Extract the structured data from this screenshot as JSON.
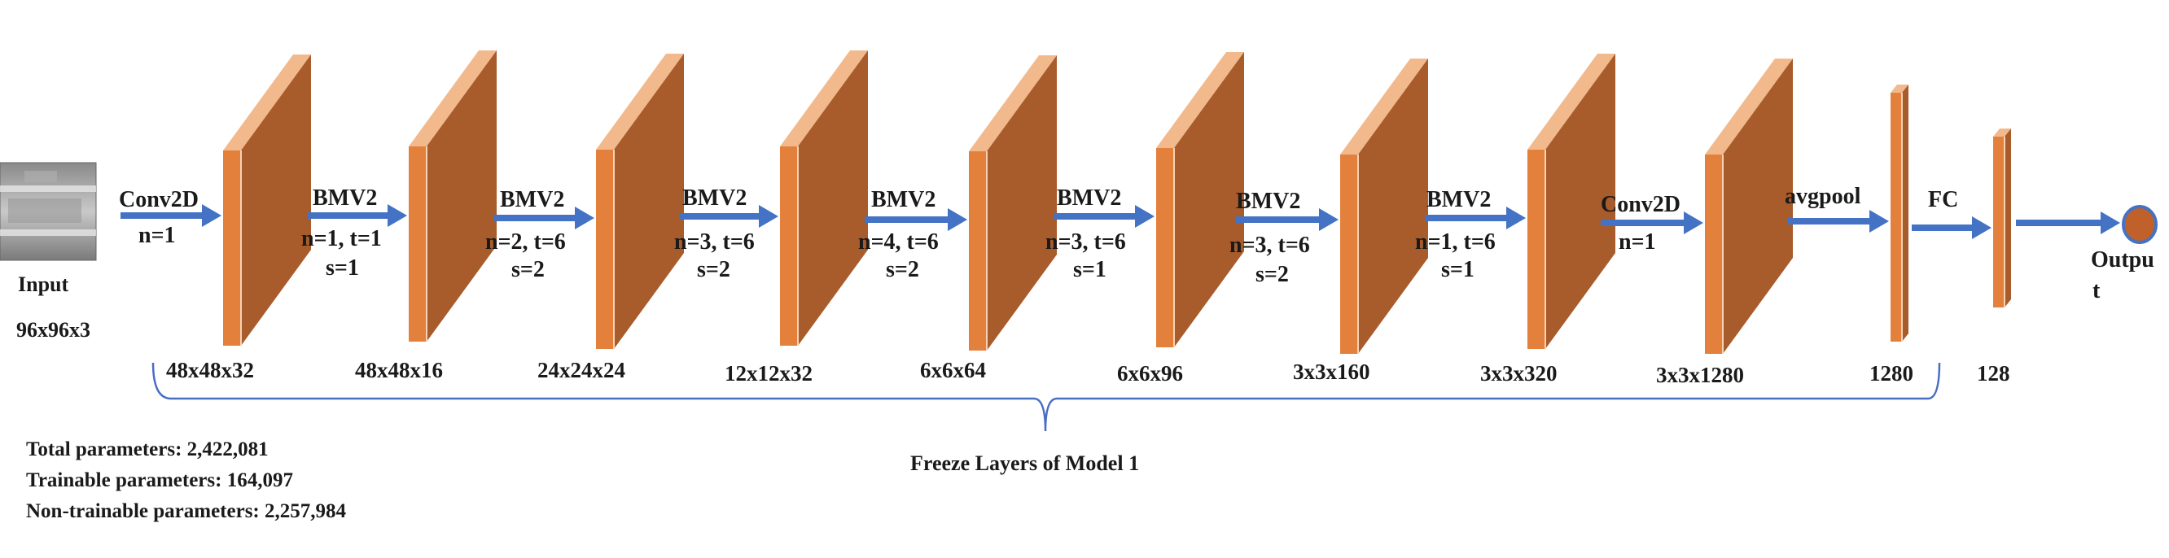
{
  "colors": {
    "arrow": "#4472C4",
    "layer_front": "#E2803C",
    "layer_side": "#A85B2B",
    "layer_edge": "#F2B98C",
    "output_node": "#C0602A",
    "brace": "#4A6DC4"
  },
  "input": {
    "title": "Input",
    "dims": "96x96x3"
  },
  "operations": [
    {
      "name": "Conv2D",
      "line1": "n=1",
      "line2": ""
    },
    {
      "name": "BMV2",
      "line1": "n=1, t=1",
      "line2": "s=1"
    },
    {
      "name": "BMV2",
      "line1": "n=2, t=6",
      "line2": "s=2"
    },
    {
      "name": "BMV2",
      "line1": "n=3, t=6",
      "line2": "s=2"
    },
    {
      "name": "BMV2",
      "line1": "n=4, t=6",
      "line2": "s=2"
    },
    {
      "name": "BMV2",
      "line1": "n=3, t=6",
      "line2": "s=1"
    },
    {
      "name": "BMV2",
      "line1": "n=3, t=6",
      "line2": "s=2"
    },
    {
      "name": "BMV2",
      "line1": "n=1, t=6",
      "line2": "s=1"
    },
    {
      "name": "Conv2D",
      "line1": "n=1",
      "line2": ""
    },
    {
      "name": "avgpool",
      "line1": "",
      "line2": ""
    },
    {
      "name": "FC",
      "line1": "",
      "line2": ""
    }
  ],
  "layers": [
    {
      "dims": "48x48x32"
    },
    {
      "dims": "48x48x16"
    },
    {
      "dims": "24x24x24"
    },
    {
      "dims": "12x12x32"
    },
    {
      "dims": "6x6x64"
    },
    {
      "dims": "6x6x96"
    },
    {
      "dims": "3x3x160"
    },
    {
      "dims": "3x3x320"
    },
    {
      "dims": "3x3x1280"
    },
    {
      "dims": "1280"
    },
    {
      "dims": "128"
    }
  ],
  "output": {
    "line1": "Outpu",
    "line2": "t"
  },
  "brace_label": "Freeze Layers of Model 1",
  "parameters": {
    "total": "Total parameters: 2,422,081",
    "trainable": "Trainable parameters: 164,097",
    "non_trainable": "Non-trainable parameters: 2,257,984"
  }
}
